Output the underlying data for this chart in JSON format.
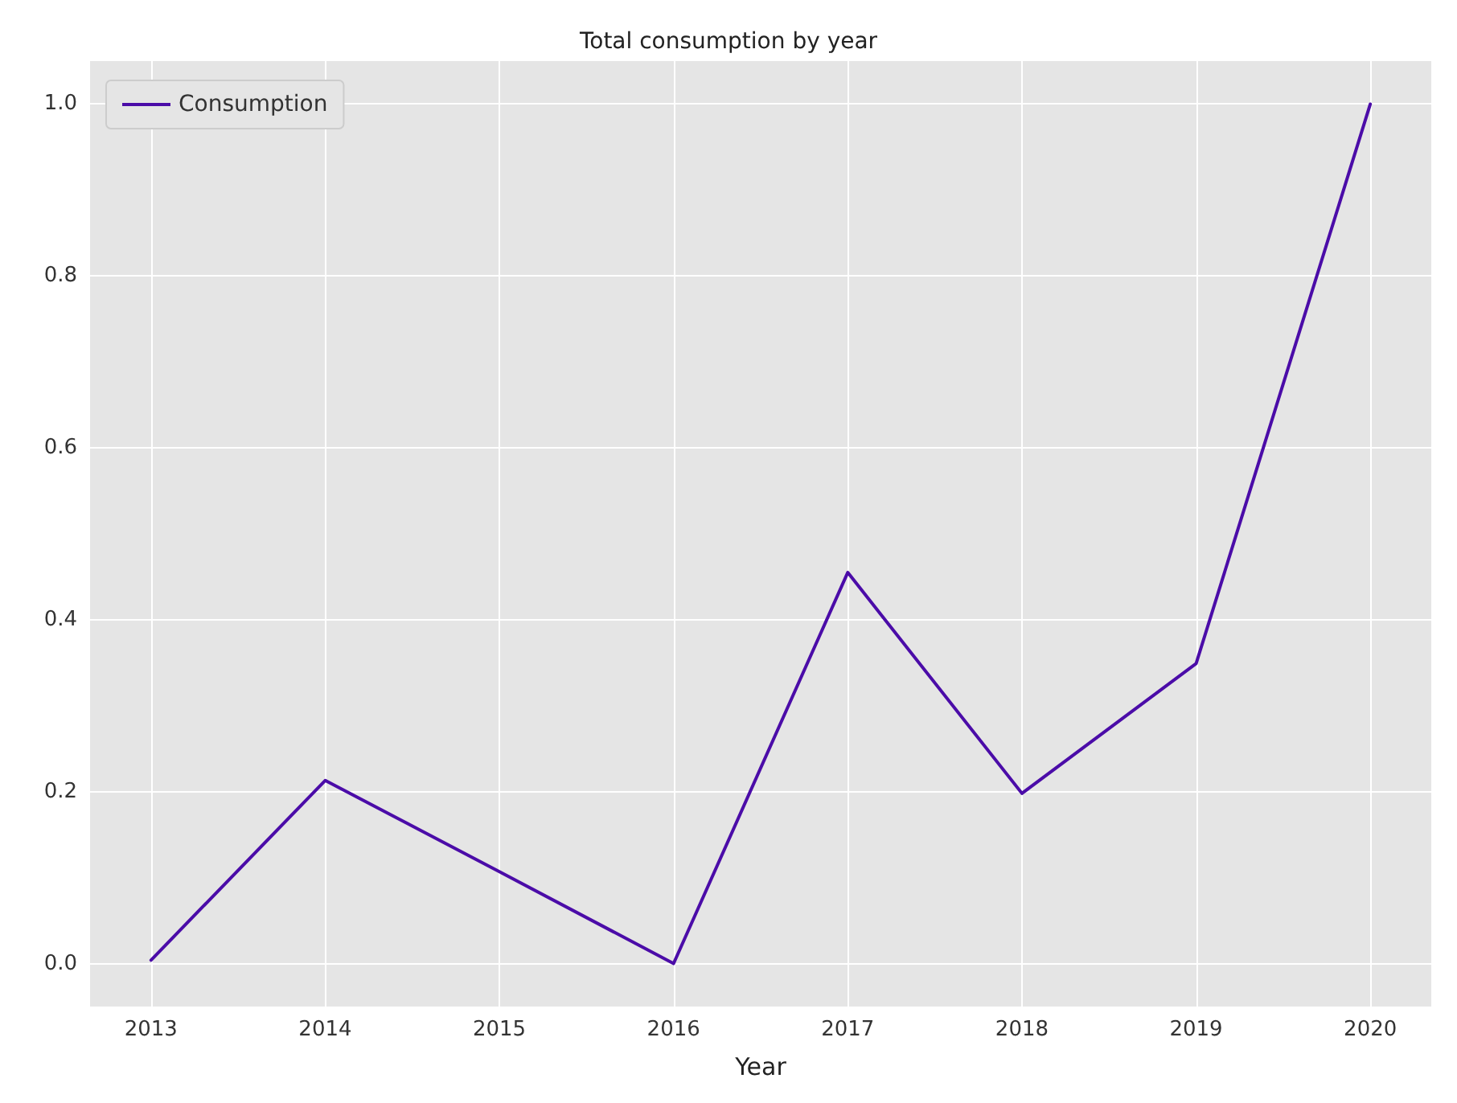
{
  "chart_data": {
    "type": "line",
    "title": "Total consumption by year",
    "xlabel": "Year",
    "x": [
      2013,
      2014,
      2015,
      2016,
      2017,
      2018,
      2019,
      2020
    ],
    "series": [
      {
        "name": "Consumption",
        "color": "#4b0ca8",
        "values": [
          0.004,
          0.213,
          0.107,
          0.0,
          0.455,
          0.198,
          0.349,
          1.0
        ]
      }
    ],
    "xlim": [
      2012.65,
      2020.35
    ],
    "xticks": [
      2013,
      2014,
      2015,
      2016,
      2017,
      2018,
      2019,
      2020
    ],
    "ylim": [
      -0.05,
      1.05
    ],
    "yticks": [
      {
        "value": 0,
        "label": "0.0"
      },
      {
        "value": 0.2,
        "label": "0.2"
      },
      {
        "value": 0.4,
        "label": "0.4"
      },
      {
        "value": 0.6,
        "label": "0.6"
      },
      {
        "value": 0.8,
        "label": "0.8"
      },
      {
        "value": 1,
        "label": "1.0"
      }
    ],
    "grid": true,
    "legend": "top left",
    "marker": "none",
    "line_style": "solid"
  }
}
